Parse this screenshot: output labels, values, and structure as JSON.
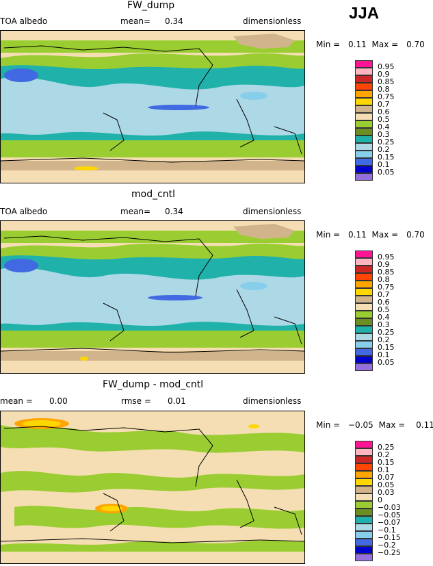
{
  "season": "JJA",
  "panels": [
    {
      "title": "FW_dump",
      "left_label": "TOA albedo",
      "stat1_label": "mean=",
      "stat1_value": "0.34",
      "stat2_label": "",
      "stat2_value": "",
      "units": "dimensionless",
      "min_label": "Min =",
      "min_value": "0.11",
      "max_label": "Max =",
      "max_value": "0.70",
      "colorbar": [
        {
          "label": "0.95",
          "color": "#ff1493"
        },
        {
          "label": "0.9",
          "color": "#ffb6c1"
        },
        {
          "label": "0.85",
          "color": "#cd2626"
        },
        {
          "label": "0.8",
          "color": "#ff4500"
        },
        {
          "label": "0.75",
          "color": "#ffa500"
        },
        {
          "label": "0.7",
          "color": "#ffd700"
        },
        {
          "label": "0.6",
          "color": "#d2b48c"
        },
        {
          "label": "0.5",
          "color": "#f5deb3"
        },
        {
          "label": "0.4",
          "color": "#9acd32"
        },
        {
          "label": "0.3",
          "color": "#6b8e23"
        },
        {
          "label": "0.25",
          "color": "#20b2aa"
        },
        {
          "label": "0.2",
          "color": "#add8e6"
        },
        {
          "label": "0.15",
          "color": "#87ceeb"
        },
        {
          "label": "0.1",
          "color": "#4169e1"
        },
        {
          "label": "0.05",
          "color": "#0000cd"
        },
        {
          "label": "",
          "color": "#9370db"
        }
      ]
    },
    {
      "title": "mod_cntl",
      "left_label": "TOA albedo",
      "stat1_label": "mean=",
      "stat1_value": "0.34",
      "stat2_label": "",
      "stat2_value": "",
      "units": "dimensionless",
      "min_label": "Min =",
      "min_value": "0.11",
      "max_label": "Max =",
      "max_value": "0.70",
      "colorbar": [
        {
          "label": "0.95",
          "color": "#ff1493"
        },
        {
          "label": "0.9",
          "color": "#ffb6c1"
        },
        {
          "label": "0.85",
          "color": "#cd2626"
        },
        {
          "label": "0.8",
          "color": "#ff4500"
        },
        {
          "label": "0.75",
          "color": "#ffa500"
        },
        {
          "label": "0.7",
          "color": "#ffd700"
        },
        {
          "label": "0.6",
          "color": "#d2b48c"
        },
        {
          "label": "0.5",
          "color": "#f5deb3"
        },
        {
          "label": "0.4",
          "color": "#9acd32"
        },
        {
          "label": "0.3",
          "color": "#6b8e23"
        },
        {
          "label": "0.25",
          "color": "#20b2aa"
        },
        {
          "label": "0.2",
          "color": "#add8e6"
        },
        {
          "label": "0.15",
          "color": "#87ceeb"
        },
        {
          "label": "0.1",
          "color": "#4169e1"
        },
        {
          "label": "0.05",
          "color": "#0000cd"
        },
        {
          "label": "",
          "color": "#9370db"
        }
      ]
    },
    {
      "title": "FW_dump - mod_cntl",
      "left_label": "",
      "stat1_label": "mean =",
      "stat1_value": "0.00",
      "stat2_label": "rmse =",
      "stat2_value": "0.01",
      "units": "dimensionless",
      "min_label": "Min =",
      "min_value": "−0.05",
      "max_label": "Max =",
      "max_value": "0.11",
      "colorbar": [
        {
          "label": "0.25",
          "color": "#ff1493"
        },
        {
          "label": "0.2",
          "color": "#ffb6c1"
        },
        {
          "label": "0.15",
          "color": "#cd2626"
        },
        {
          "label": "0.1",
          "color": "#ff4500"
        },
        {
          "label": "0.07",
          "color": "#ffa500"
        },
        {
          "label": "0.05",
          "color": "#ffd700"
        },
        {
          "label": "0.03",
          "color": "#d2b48c"
        },
        {
          "label": "0",
          "color": "#f5deb3"
        },
        {
          "label": "−0.03",
          "color": "#9acd32"
        },
        {
          "label": "−0.05",
          "color": "#6b8e23"
        },
        {
          "label": "−0.07",
          "color": "#20b2aa"
        },
        {
          "label": "−0.1",
          "color": "#add8e6"
        },
        {
          "label": "−0.15",
          "color": "#87ceeb"
        },
        {
          "label": "−0.2",
          "color": "#4169e1"
        },
        {
          "label": "−0.25",
          "color": "#0000cd"
        },
        {
          "label": "",
          "color": "#9370db"
        }
      ]
    }
  ],
  "chart_data": [
    {
      "type": "heatmap",
      "title": "FW_dump",
      "subtitle": "TOA albedo",
      "units": "dimensionless",
      "mean": 0.34,
      "min": 0.11,
      "max": 0.7,
      "levels": [
        0.05,
        0.1,
        0.15,
        0.2,
        0.25,
        0.3,
        0.4,
        0.5,
        0.6,
        0.7,
        0.75,
        0.8,
        0.85,
        0.9,
        0.95
      ]
    },
    {
      "type": "heatmap",
      "title": "mod_cntl",
      "subtitle": "TOA albedo",
      "units": "dimensionless",
      "mean": 0.34,
      "min": 0.11,
      "max": 0.7,
      "levels": [
        0.05,
        0.1,
        0.15,
        0.2,
        0.25,
        0.3,
        0.4,
        0.5,
        0.6,
        0.7,
        0.75,
        0.8,
        0.85,
        0.9,
        0.95
      ]
    },
    {
      "type": "heatmap",
      "title": "FW_dump - mod_cntl",
      "units": "dimensionless",
      "mean": 0.0,
      "rmse": 0.01,
      "min": -0.05,
      "max": 0.11,
      "levels": [
        -0.25,
        -0.2,
        -0.15,
        -0.1,
        -0.07,
        -0.05,
        -0.03,
        0,
        0.03,
        0.05,
        0.07,
        0.1,
        0.15,
        0.2,
        0.25
      ]
    }
  ]
}
